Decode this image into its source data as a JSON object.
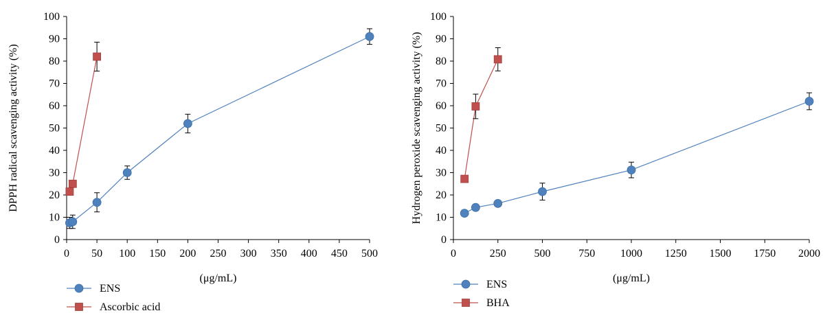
{
  "chart_data": [
    {
      "type": "line",
      "ylabel": "DPPH radical scavenging activity (%)",
      "xlabel": "(μg/mL)",
      "xlim": [
        0,
        500
      ],
      "ylim": [
        0,
        100
      ],
      "x_ticks": [
        0,
        50,
        100,
        150,
        200,
        250,
        300,
        350,
        400,
        450,
        500
      ],
      "y_ticks": [
        0,
        10,
        20,
        30,
        40,
        50,
        60,
        70,
        80,
        90,
        100
      ],
      "legend_position": "bottom-left",
      "series": [
        {
          "name": "ENS",
          "color": "#4f81bd",
          "marker": "circle",
          "points": [
            {
              "x": 5,
              "y": 7.5,
              "err": 2.5
            },
            {
              "x": 10,
              "y": 8,
              "err": 3
            },
            {
              "x": 50,
              "y": 16.7,
              "err": 4.3
            },
            {
              "x": 100,
              "y": 30,
              "err": 3
            },
            {
              "x": 200,
              "y": 52,
              "err": 4.2
            },
            {
              "x": 500,
              "y": 91,
              "err": 3.5
            }
          ]
        },
        {
          "name": "Ascorbic acid",
          "color": "#c0504d",
          "marker": "square",
          "points": [
            {
              "x": 5,
              "y": 21.5,
              "err": 0
            },
            {
              "x": 10,
              "y": 25,
              "err": 0
            },
            {
              "x": 50,
              "y": 82,
              "err": 6.5
            }
          ]
        }
      ]
    },
    {
      "type": "line",
      "ylabel": "Hydrogen peroxide scavenging activity (%)",
      "xlabel": "(μg/mL)",
      "xlim": [
        0,
        2000
      ],
      "ylim": [
        0,
        100
      ],
      "x_ticks": [
        0,
        250,
        500,
        750,
        1000,
        1250,
        1500,
        1750,
        2000
      ],
      "y_ticks": [
        0,
        10,
        20,
        30,
        40,
        50,
        60,
        70,
        80,
        90,
        100
      ],
      "legend_position": "bottom-left",
      "series": [
        {
          "name": "ENS",
          "color": "#4f81bd",
          "marker": "circle",
          "points": [
            {
              "x": 62.5,
              "y": 11.8,
              "err": 0
            },
            {
              "x": 125,
              "y": 14.4,
              "err": 0
            },
            {
              "x": 250,
              "y": 16.2,
              "err": 0
            },
            {
              "x": 500,
              "y": 21.5,
              "err": 3.8
            },
            {
              "x": 1000,
              "y": 31.2,
              "err": 3.5
            },
            {
              "x": 2000,
              "y": 62,
              "err": 3.8
            }
          ]
        },
        {
          "name": "BHA",
          "color": "#c0504d",
          "marker": "square",
          "points": [
            {
              "x": 62.5,
              "y": 27.2,
              "err": 0
            },
            {
              "x": 125,
              "y": 59.7,
              "err": 5.5
            },
            {
              "x": 250,
              "y": 80.8,
              "err": 5.2
            }
          ]
        }
      ]
    }
  ]
}
